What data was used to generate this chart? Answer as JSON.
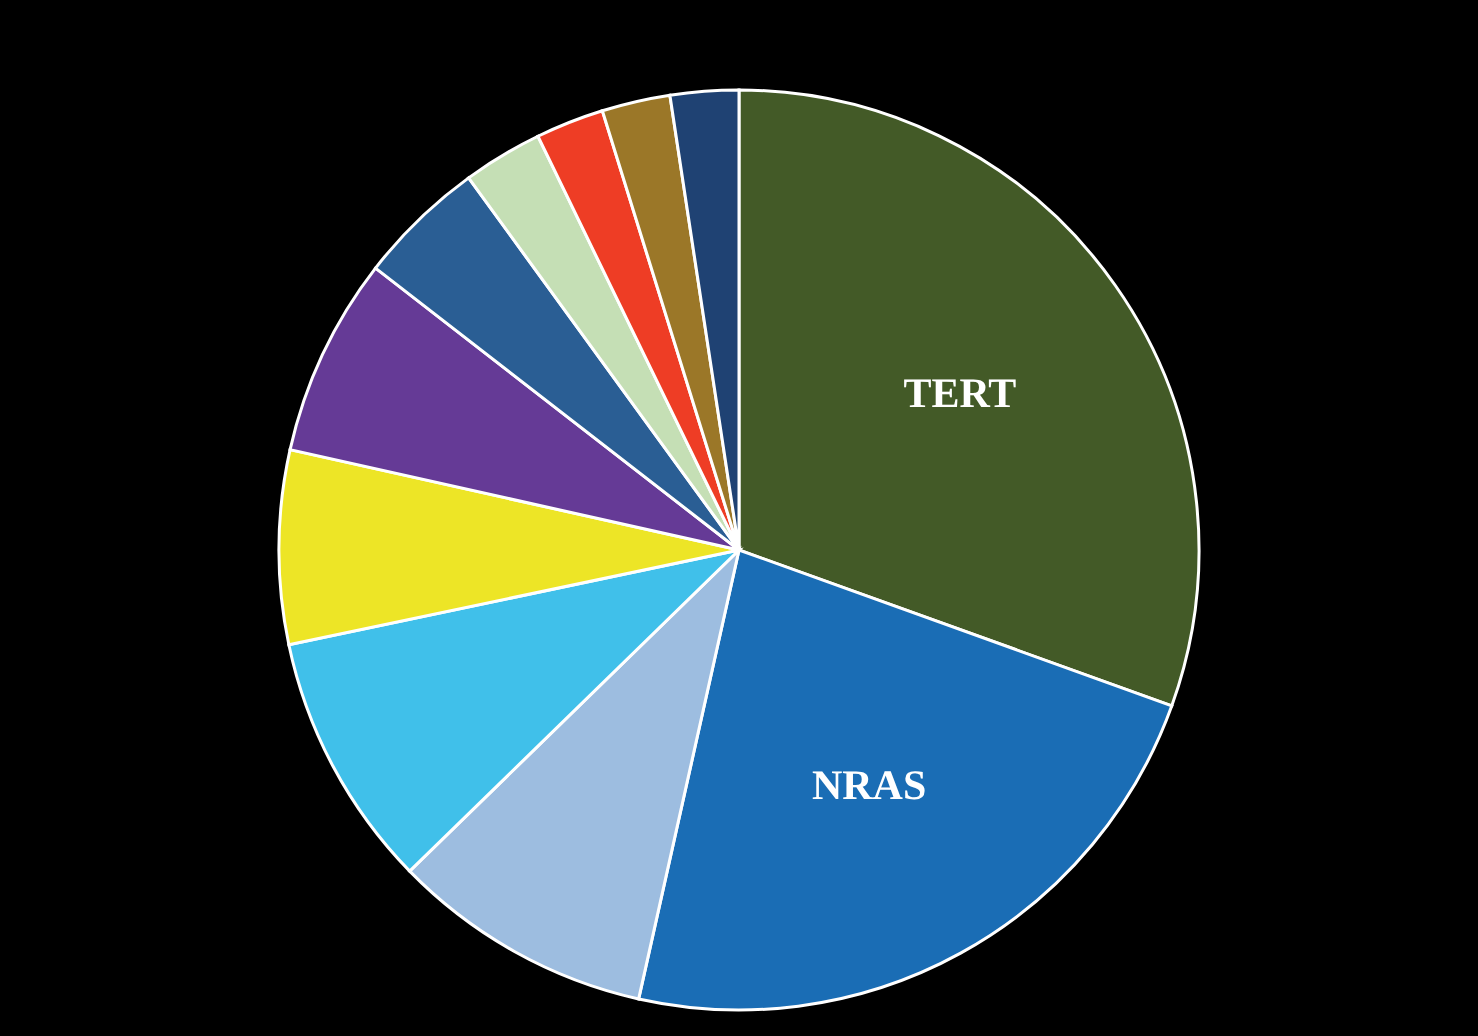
{
  "chart_data": {
    "type": "pie",
    "categories": [
      "TERT",
      "NRAS",
      null,
      null,
      null,
      null,
      null,
      null,
      null,
      null,
      null
    ],
    "values": [
      30.5,
      23,
      9.2,
      9,
      6.8,
      7,
      4.5,
      2.8,
      2.4,
      2.4,
      2.4
    ],
    "colors": [
      "#435a27",
      "#1a6db5",
      "#9dbde0",
      "#40c0ea",
      "#ede526",
      "#653a96",
      "#2a5e94",
      "#c5dfb5",
      "#ee3d25",
      "#9b7728",
      "#1f4273"
    ]
  }
}
